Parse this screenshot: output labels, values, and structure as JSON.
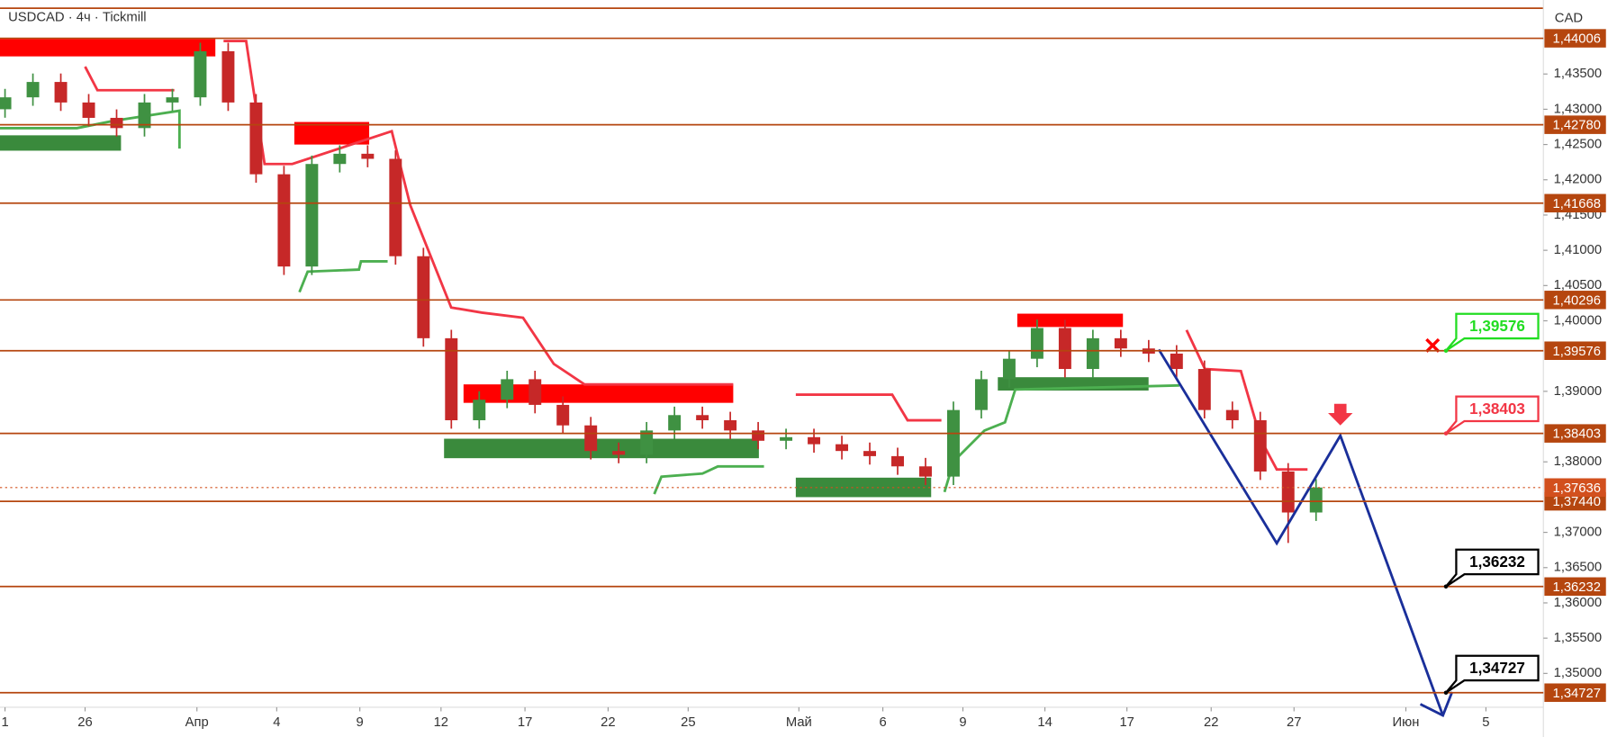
{
  "chart_data": {
    "type": "candlestick",
    "title": "USDCAD · 4ч · Tickmill",
    "currency": "CAD",
    "up_color": "#3f9142",
    "down_color": "#c62828",
    "x": [
      0,
      1,
      2,
      3,
      4,
      5,
      6,
      7,
      8,
      9,
      10,
      11,
      12,
      13,
      14,
      15,
      16,
      17,
      18,
      19,
      20,
      21,
      22,
      23,
      24,
      25,
      26,
      27,
      28,
      29,
      30,
      31,
      32,
      33,
      34,
      35,
      36,
      37,
      38,
      39,
      40,
      41,
      42,
      43,
      44,
      45,
      46,
      47
    ],
    "open": [
      1.43,
      1.43169,
      1.43387,
      1.43096,
      1.42878,
      1.42733,
      1.43096,
      1.43169,
      1.43823,
      1.43096,
      1.42078,
      1.4077,
      1.42224,
      1.42369,
      1.42297,
      1.40916,
      1.39753,
      1.3859,
      1.38881,
      1.39172,
      1.38808,
      1.38517,
      1.38154,
      1.381,
      1.38445,
      1.38663,
      1.3859,
      1.38445,
      1.38299,
      1.3835,
      1.3825,
      1.38154,
      1.38081,
      1.37936,
      1.37791,
      1.38735,
      1.39172,
      1.39462,
      1.39898,
      1.39317,
      1.39753,
      1.39608,
      1.39535,
      1.39317,
      1.38735,
      1.3859,
      1.37863,
      1.37282
    ],
    "high": [
      1.43289,
      1.43507,
      1.43507,
      1.43216,
      1.42998,
      1.43216,
      1.43289,
      1.43943,
      1.43943,
      1.43216,
      1.42198,
      1.42344,
      1.42489,
      1.42489,
      1.42417,
      1.41036,
      1.39873,
      1.39001,
      1.39292,
      1.39292,
      1.38928,
      1.38637,
      1.38274,
      1.38565,
      1.38783,
      1.38783,
      1.3871,
      1.38565,
      1.3847,
      1.3847,
      1.3837,
      1.38274,
      1.38201,
      1.38056,
      1.38855,
      1.39292,
      1.39582,
      1.40018,
      1.40018,
      1.39873,
      1.39873,
      1.39728,
      1.39655,
      1.39437,
      1.38855,
      1.3871,
      1.37983,
      1.37756
    ],
    "low": [
      1.4288,
      1.43049,
      1.42976,
      1.42758,
      1.42613,
      1.42613,
      1.42976,
      1.43049,
      1.42976,
      1.41958,
      1.4065,
      1.4065,
      1.42104,
      1.42177,
      1.40796,
      1.39633,
      1.3847,
      1.3847,
      1.38761,
      1.38688,
      1.38397,
      1.38034,
      1.3798,
      1.3798,
      1.38325,
      1.3847,
      1.38325,
      1.38179,
      1.38179,
      1.3813,
      1.38034,
      1.37961,
      1.37816,
      1.37671,
      1.37671,
      1.38615,
      1.39052,
      1.39342,
      1.39197,
      1.39197,
      1.39488,
      1.39415,
      1.39197,
      1.38615,
      1.3847,
      1.37743,
      1.3685,
      1.37162
    ],
    "close": [
      1.43169,
      1.43387,
      1.43096,
      1.42878,
      1.42733,
      1.43096,
      1.43169,
      1.43823,
      1.43096,
      1.42078,
      1.4077,
      1.42224,
      1.42369,
      1.42297,
      1.40916,
      1.39753,
      1.3859,
      1.38881,
      1.39172,
      1.38808,
      1.38517,
      1.38154,
      1.381,
      1.38445,
      1.38663,
      1.3859,
      1.38445,
      1.38299,
      1.3835,
      1.3825,
      1.38154,
      1.38081,
      1.37936,
      1.37791,
      1.38735,
      1.39172,
      1.39462,
      1.39898,
      1.39317,
      1.39753,
      1.39608,
      1.39535,
      1.39317,
      1.38735,
      1.3859,
      1.37863,
      1.37282,
      1.37636
    ],
    "xlim": [
      -0.18,
      55.15
    ],
    "xticks": [
      {
        "value": 0,
        "label": "1"
      },
      {
        "value": 2.87,
        "label": "26"
      },
      {
        "value": 6.88,
        "label": "Апр"
      },
      {
        "value": 9.74,
        "label": "4"
      },
      {
        "value": 12.72,
        "label": "9"
      },
      {
        "value": 15.63,
        "label": "12"
      },
      {
        "value": 18.64,
        "label": "17"
      },
      {
        "value": 21.62,
        "label": "22"
      },
      {
        "value": 24.49,
        "label": "25"
      },
      {
        "value": 28.46,
        "label": "Май"
      },
      {
        "value": 31.47,
        "label": "6"
      },
      {
        "value": 34.34,
        "label": "9"
      },
      {
        "value": 37.28,
        "label": "14"
      },
      {
        "value": 40.22,
        "label": "17"
      },
      {
        "value": 43.24,
        "label": "22"
      },
      {
        "value": 46.21,
        "label": "27"
      },
      {
        "value": 50.22,
        "label": "Июн"
      },
      {
        "value": 53.09,
        "label": "5"
      }
    ],
    "ylim": [
      1.3452,
      1.44549
    ],
    "yticks": [
      {
        "value": 1.435,
        "label": "1,43500"
      },
      {
        "value": 1.43,
        "label": "1,43000"
      },
      {
        "value": 1.425,
        "label": "1,42500"
      },
      {
        "value": 1.42,
        "label": "1,42000"
      },
      {
        "value": 1.415,
        "label": "1,41500"
      },
      {
        "value": 1.41,
        "label": "1,41000"
      },
      {
        "value": 1.405,
        "label": "1,40500"
      },
      {
        "value": 1.4,
        "label": "1,40000"
      },
      {
        "value": 1.39,
        "label": "1,39000"
      },
      {
        "value": 1.38,
        "label": "1,38000"
      },
      {
        "value": 1.37,
        "label": "1,37000"
      },
      {
        "value": 1.365,
        "label": "1,36500"
      },
      {
        "value": 1.36,
        "label": "1,36000"
      },
      {
        "value": 1.355,
        "label": "1,35500"
      },
      {
        "value": 1.35,
        "label": "1,35000"
      }
    ],
    "level_color": "#b5460f",
    "levels": [
      {
        "value": 1.44006,
        "label": "1,44006"
      },
      {
        "value": 1.4278,
        "label": "1,42780"
      },
      {
        "value": 1.41668,
        "label": "1,41668"
      },
      {
        "value": 1.40296,
        "label": "1,40296"
      },
      {
        "value": 1.39576,
        "label": "1,39576"
      },
      {
        "value": 1.38403,
        "label": "1,38403"
      },
      {
        "value": 1.3744,
        "label": "1,37440"
      },
      {
        "value": 1.36232,
        "label": "1,36232"
      },
      {
        "value": 1.34727,
        "label": "1,34727"
      }
    ],
    "last_price": {
      "value": 1.37636,
      "label": "1,37636",
      "color": "#d2501e"
    },
    "callouts": [
      {
        "value": 1.39576,
        "label": "1,39576",
        "color": "#22dd22"
      },
      {
        "value": 1.38403,
        "label": "1,38403",
        "color": "#f23645"
      },
      {
        "value": 1.36232,
        "label": "1,36232",
        "color": "#000000"
      },
      {
        "value": 1.34727,
        "label": "1,34727",
        "color": "#000000"
      }
    ]
  }
}
